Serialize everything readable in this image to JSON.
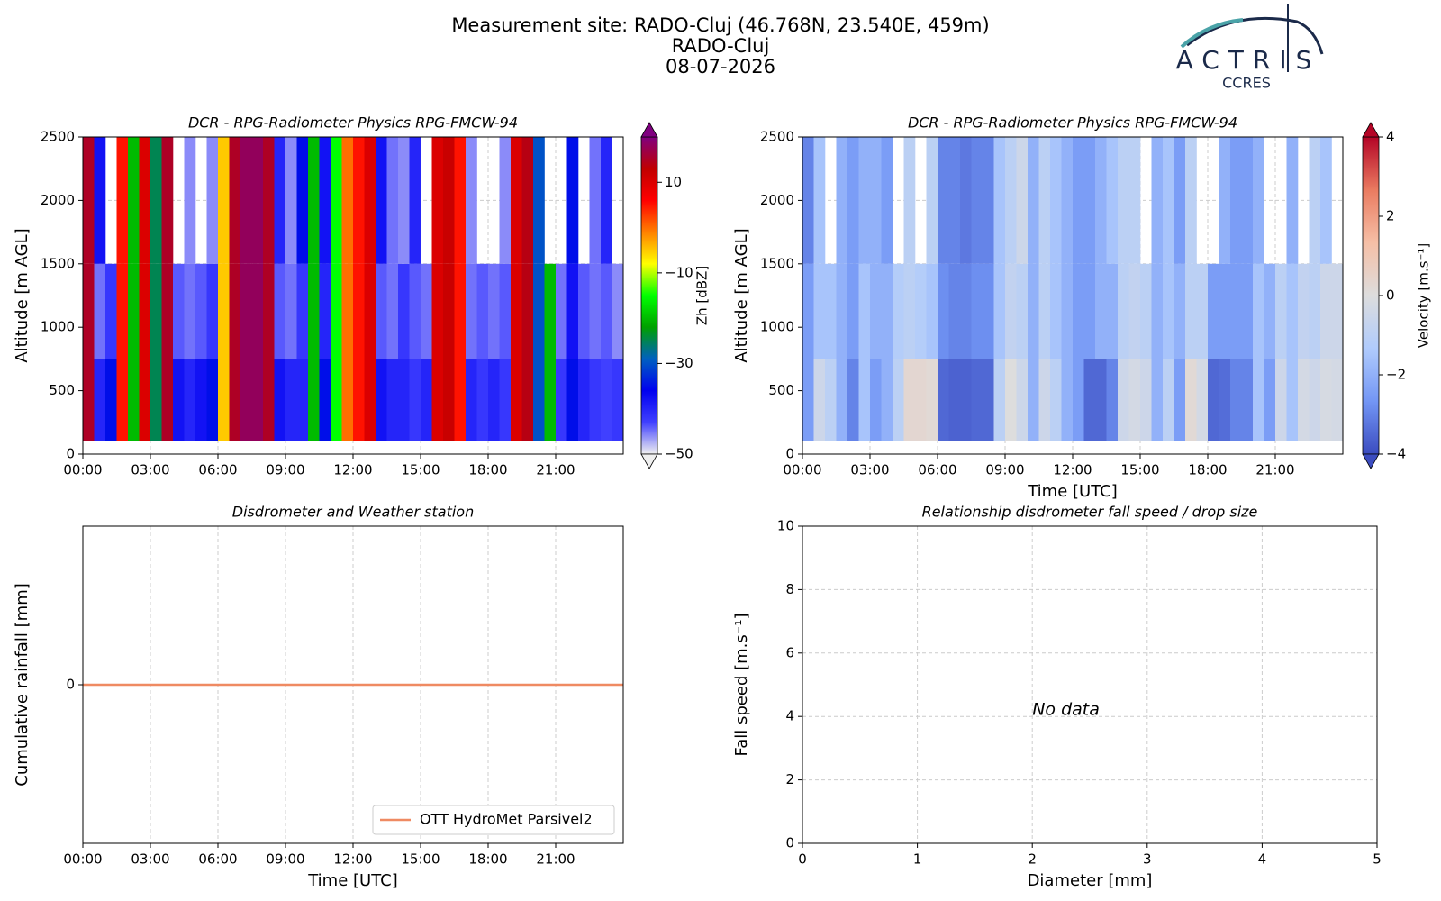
{
  "header": {
    "title": [
      "Measurement site: RADO-Cluj (46.768N, 23.540E, 459m)",
      "RADO-Cluj",
      "08-07-2026"
    ],
    "logo": {
      "name": "ACTRIS",
      "sub": "CCRES"
    }
  },
  "chart_data": [
    {
      "type": "heatmap",
      "title": "DCR - RPG-Radiometer Physics RPG-FMCW-94",
      "y_label": "Altitude [m AGL]",
      "xlim": [
        0,
        24
      ],
      "ylim": [
        0,
        2500
      ],
      "grid": true,
      "xticks": [
        {
          "value": 0,
          "label": "00:00"
        },
        {
          "value": 3,
          "label": "03:00"
        },
        {
          "value": 6,
          "label": "06:00"
        },
        {
          "value": 9,
          "label": "09:00"
        },
        {
          "value": 12,
          "label": "12:00"
        },
        {
          "value": 15,
          "label": "15:00"
        },
        {
          "value": 18,
          "label": "18:00"
        },
        {
          "value": 21,
          "label": "21:00"
        }
      ],
      "yticks": [
        0,
        500,
        1000,
        1500,
        2000,
        2500
      ],
      "x_bins": [
        0,
        0.5,
        1,
        1.5,
        2,
        2.5,
        3,
        3.5,
        4,
        4.5,
        5,
        5.5,
        6,
        6.5,
        7,
        7.5,
        8,
        8.5,
        9,
        9.5,
        10,
        10.5,
        11,
        11.5,
        12,
        12.5,
        13,
        13.5,
        14,
        14.5,
        15,
        15.5,
        16,
        16.5,
        17,
        17.5,
        18,
        18.5,
        19,
        19.5,
        20,
        20.5,
        21,
        21.5,
        22,
        22.5,
        23,
        23.5,
        24
      ],
      "y_bins": [
        100,
        750,
        1500,
        2500
      ],
      "z": [
        [
          15,
          -40,
          -35,
          5,
          -20,
          10,
          -25,
          15,
          -38,
          -40,
          -38,
          -35,
          -5,
          15,
          18,
          18,
          15,
          -38,
          -40,
          -40,
          -20,
          -35,
          -15,
          0,
          5,
          10,
          -38,
          -40,
          -40,
          -42,
          -40,
          10,
          12,
          5,
          -40,
          -42,
          -40,
          -42,
          10,
          14,
          -30,
          -20,
          -42,
          -35,
          -40,
          -42,
          -43,
          -42
        ],
        [
          15,
          -45,
          -42,
          5,
          -20,
          10,
          -25,
          15,
          -44,
          -45,
          -44,
          -42,
          -5,
          15,
          18,
          18,
          15,
          -44,
          -45,
          -42,
          -20,
          -40,
          -15,
          0,
          5,
          10,
          -44,
          -45,
          -42,
          -44,
          -45,
          10,
          12,
          5,
          -45,
          -44,
          -45,
          -44,
          10,
          14,
          -30,
          -20,
          -45,
          -38,
          -44,
          -45,
          -44,
          -46
        ],
        [
          15,
          -38,
          null,
          5,
          -20,
          10,
          -25,
          15,
          null,
          -46,
          null,
          -46,
          -5,
          15,
          18,
          18,
          15,
          -40,
          -46,
          -35,
          -20,
          -38,
          -15,
          0,
          5,
          10,
          -38,
          -45,
          -46,
          -40,
          null,
          10,
          12,
          5,
          -46,
          null,
          null,
          -46,
          10,
          14,
          -30,
          null,
          null,
          -35,
          null,
          -45,
          -40,
          null
        ]
      ],
      "clim": [
        -50,
        20
      ],
      "clabel": "Zh [dBZ]",
      "cticks": [
        10,
        {
          "value": -10,
          "label": "−10"
        },
        {
          "value": -30,
          "label": "−30"
        },
        {
          "value": -50,
          "label": "−50"
        }
      ],
      "colormap": [
        "#f0f0f0",
        "#4040ff",
        "#0000f0",
        "#0060c0",
        "#00a000",
        "#00ff00",
        "#ffff00",
        "#ff8000",
        "#ff0000",
        "#c00000",
        "#800080"
      ]
    },
    {
      "type": "heatmap",
      "title": "DCR - RPG-Radiometer Physics RPG-FMCW-94",
      "y_label": "Altitude [m AGL]",
      "x_label": "Time [UTC]",
      "xlim": [
        0,
        24
      ],
      "ylim": [
        0,
        2500
      ],
      "grid": true,
      "xticks": [
        {
          "value": 0,
          "label": "00:00"
        },
        {
          "value": 3,
          "label": "03:00"
        },
        {
          "value": 6,
          "label": "06:00"
        },
        {
          "value": 9,
          "label": "09:00"
        },
        {
          "value": 12,
          "label": "12:00"
        },
        {
          "value": 15,
          "label": "15:00"
        },
        {
          "value": 18,
          "label": "18:00"
        },
        {
          "value": 21,
          "label": "21:00"
        }
      ],
      "yticks": [
        0,
        500,
        1000,
        1500,
        2000,
        2500
      ],
      "x_bins": [
        0,
        0.5,
        1,
        1.5,
        2,
        2.5,
        3,
        3.5,
        4,
        4.5,
        5,
        5.5,
        6,
        6.5,
        7,
        7.5,
        8,
        8.5,
        9,
        9.5,
        10,
        10.5,
        11,
        11.5,
        12,
        12.5,
        13,
        13.5,
        14,
        14.5,
        15,
        15.5,
        16,
        16.5,
        17,
        17.5,
        18,
        18.5,
        19,
        19.5,
        20,
        20.5,
        21,
        21.5,
        22,
        22.5,
        23,
        23.5,
        24
      ],
      "y_bins": [
        100,
        750,
        1500,
        2500
      ],
      "z": [
        [
          -2.5,
          -0.5,
          -1,
          -2,
          -3,
          -1.5,
          -2.5,
          -2,
          -1,
          0.3,
          0.3,
          0.2,
          -3.5,
          -3.6,
          -3.6,
          -3.5,
          -3.5,
          -1,
          0,
          -0.5,
          -2,
          -0.5,
          -1,
          -2,
          -2.5,
          -3.5,
          -3.5,
          -3,
          -0.5,
          -0.3,
          -0.5,
          -2,
          -1,
          -2.5,
          0.2,
          -0.3,
          -3.5,
          -3.4,
          -3,
          -3,
          -1.5,
          -2.5,
          -0.5,
          -1.5,
          -0.3,
          -0.5,
          -0.2,
          -0.3
        ],
        [
          -2.5,
          -1.5,
          -1.5,
          -2,
          -2.5,
          -1.5,
          -2,
          -2,
          -1.2,
          -1,
          -1.2,
          -1.5,
          -2.8,
          -3,
          -3,
          -2.8,
          -2.8,
          -1.5,
          -0.8,
          -1,
          -2,
          -1,
          -1.5,
          -2,
          -2.5,
          -2.5,
          -2,
          -2,
          -1,
          -0.8,
          -1,
          -2,
          -1.5,
          -2,
          -1,
          -1,
          -2.5,
          -2.5,
          -2.5,
          -2.5,
          -1.5,
          -2,
          -1,
          -1.5,
          -0.8,
          -1,
          -0.5,
          -0.5
        ],
        [
          -3,
          -1.5,
          null,
          -2,
          -2.5,
          -2,
          -2,
          -2.5,
          null,
          -1,
          null,
          -1,
          -3,
          -3,
          -3.2,
          -3,
          -3,
          -1.5,
          -1,
          -0.5,
          -2,
          -1,
          -1.5,
          -2,
          -2.5,
          -2.5,
          -2,
          -1.5,
          -1,
          -1,
          null,
          -2,
          -1.5,
          -2.5,
          -1,
          null,
          null,
          -2,
          -2.5,
          -2.5,
          -2,
          null,
          null,
          -2,
          null,
          -1,
          -1.5,
          null
        ]
      ],
      "clim": [
        -4,
        4
      ],
      "clabel": "Velocity [m.s⁻¹]",
      "cticks": [
        4,
        2,
        0,
        {
          "value": -2,
          "label": "−2"
        },
        {
          "value": -4,
          "label": "−4"
        }
      ],
      "colormap": [
        "#3b4cc0",
        "#7396f5",
        "#b0cbfc",
        "#dddddd",
        "#f6bfa6",
        "#ea7b60",
        "#b40426"
      ]
    },
    {
      "type": "line",
      "title": "Disdrometer and Weather station",
      "y_label": "Cumulative rainfall [mm]",
      "x_label": "Time [UTC]",
      "xlim": [
        0,
        24
      ],
      "ylim": [
        -0.055,
        0.055
      ],
      "grid": true,
      "legend": "lower right",
      "xticks": [
        {
          "value": 0,
          "label": "00:00"
        },
        {
          "value": 3,
          "label": "03:00"
        },
        {
          "value": 6,
          "label": "06:00"
        },
        {
          "value": 9,
          "label": "09:00"
        },
        {
          "value": 12,
          "label": "12:00"
        },
        {
          "value": 15,
          "label": "15:00"
        },
        {
          "value": 18,
          "label": "18:00"
        },
        {
          "value": 21,
          "label": "21:00"
        }
      ],
      "yticks": [
        0
      ],
      "series": [
        {
          "name": "OTT HydroMet Parsivel2",
          "color": "#ef8a62",
          "x": [
            0,
            24
          ],
          "values": [
            0,
            0
          ]
        }
      ]
    },
    {
      "type": "scatter",
      "title": "Relationship disdrometer fall speed / drop size",
      "y_label": "Fall speed [m.s⁻¹]",
      "x_label": "Diameter [mm]",
      "xlim": [
        0,
        5
      ],
      "ylim": [
        0,
        10
      ],
      "grid": true,
      "xticks": [
        0,
        1,
        2,
        3,
        4,
        5
      ],
      "yticks": [
        0,
        2,
        4,
        6,
        8,
        10
      ],
      "annotation": "No data",
      "series": []
    }
  ]
}
